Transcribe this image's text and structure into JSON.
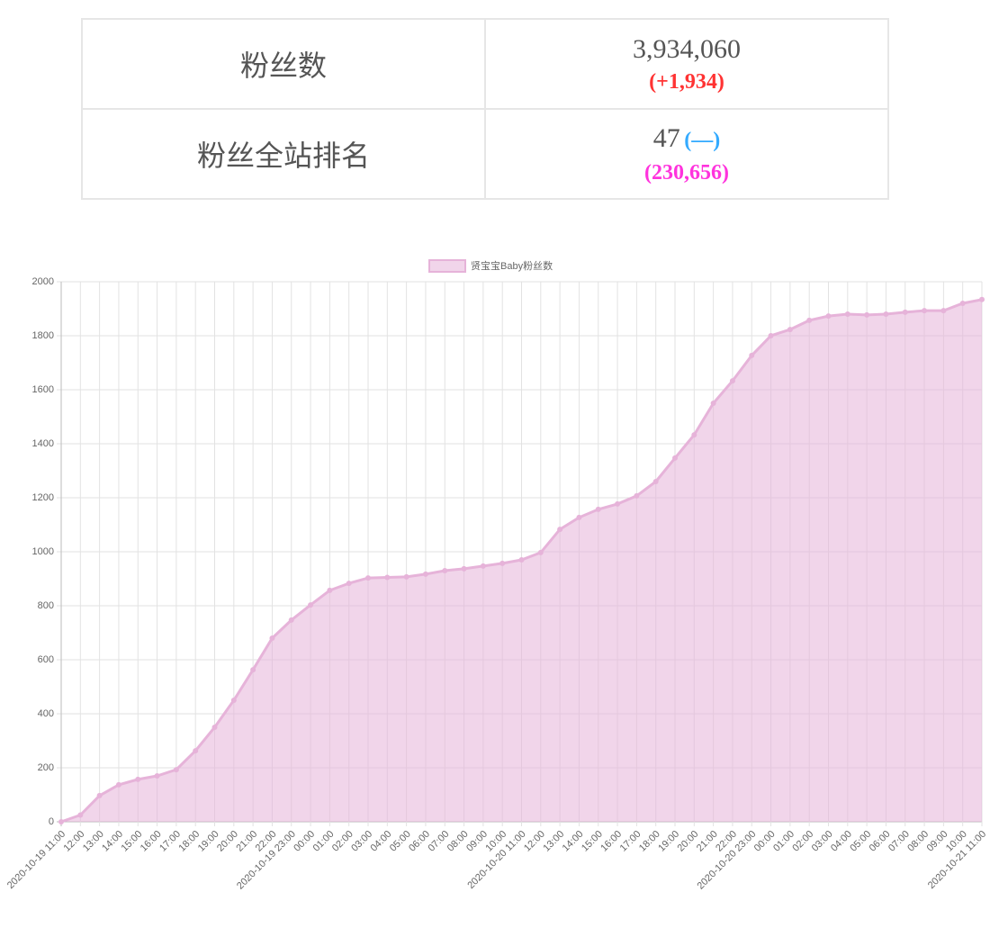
{
  "table": {
    "rows": [
      {
        "label": "粉丝数",
        "value": "3,934,060",
        "change": "(+1,934)"
      },
      {
        "label": "粉丝全站排名",
        "value": "47",
        "change": "(—)",
        "extra": "(230,656)"
      }
    ]
  },
  "chart_data": {
    "type": "area",
    "categories": [
      "2020-10-19 11:00",
      "12:00",
      "13:00",
      "14:00",
      "15:00",
      "16:00",
      "17:00",
      "18:00",
      "19:00",
      "20:00",
      "21:00",
      "22:00",
      "2020-10-19 23:00",
      "00:00",
      "01:00",
      "02:00",
      "03:00",
      "04:00",
      "05:00",
      "06:00",
      "07:00",
      "08:00",
      "09:00",
      "10:00",
      "2020-10-20 11:00",
      "12:00",
      "13:00",
      "14:00",
      "15:00",
      "16:00",
      "17:00",
      "18:00",
      "19:00",
      "20:00",
      "21:00",
      "22:00",
      "2020-10-20 23:00",
      "00:00",
      "01:00",
      "02:00",
      "03:00",
      "04:00",
      "05:00",
      "06:00",
      "07:00",
      "08:00",
      "09:00",
      "10:00",
      "2020-10-21 11:00"
    ],
    "series": [
      {
        "name": "贤宝宝Baby粉丝数",
        "color": "#e6b3d9",
        "values": [
          0,
          25,
          97,
          137,
          157,
          170,
          193,
          263,
          350,
          450,
          563,
          680,
          747,
          803,
          857,
          883,
          903,
          905,
          907,
          917,
          930,
          937,
          947,
          957,
          970,
          997,
          1083,
          1127,
          1157,
          1177,
          1207,
          1260,
          1347,
          1433,
          1550,
          1633,
          1727,
          1800,
          1823,
          1857,
          1873,
          1880,
          1877,
          1880,
          1887,
          1893,
          1893,
          1920,
          1934
        ]
      }
    ],
    "ylim": [
      0,
      2000
    ],
    "yticks": [
      0,
      200,
      400,
      600,
      800,
      1000,
      1200,
      1400,
      1600,
      1800,
      2000
    ],
    "grid": true
  }
}
